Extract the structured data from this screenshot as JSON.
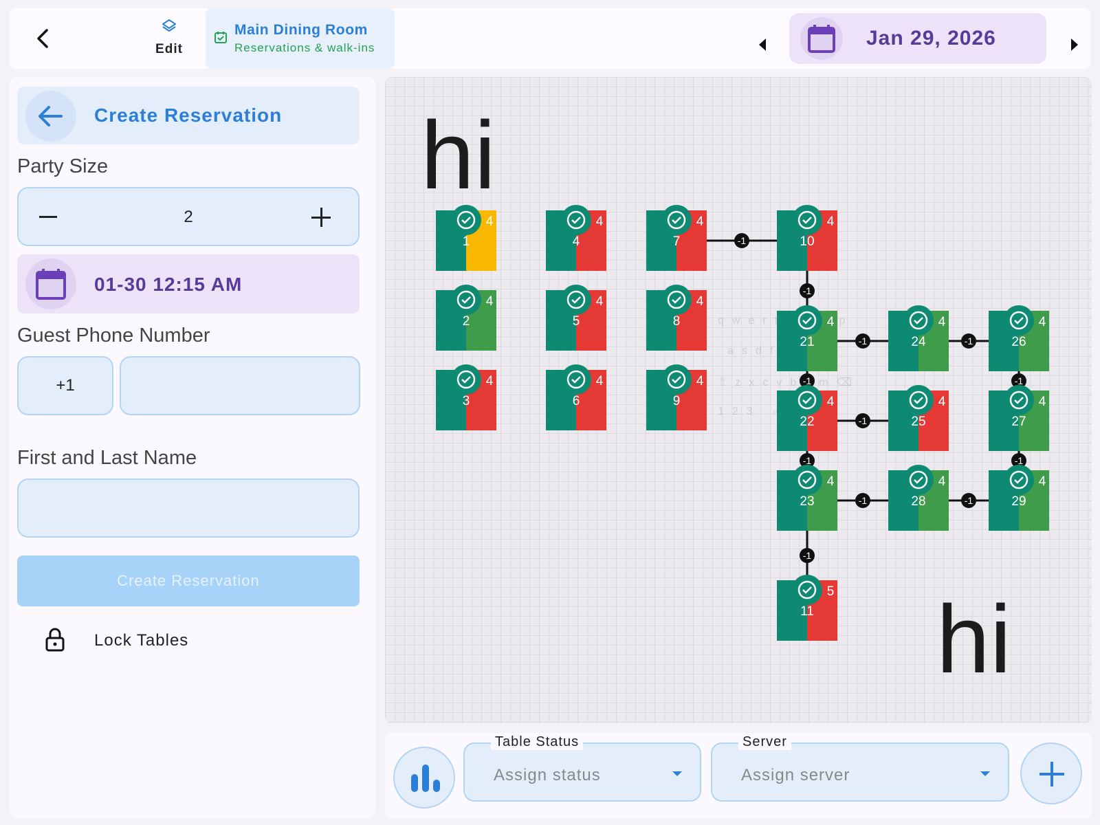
{
  "header": {
    "edit_label": "Edit",
    "room_title": "Main Dining Room",
    "room_subtitle": "Reservations & walk-ins",
    "date": "Jan 29, 2026"
  },
  "form": {
    "header_label": "Create Reservation",
    "party_size_label": "Party Size",
    "party_size": "2",
    "datetime": "01-30 12:15 AM",
    "phone_label": "Guest Phone Number",
    "country_code": "+1",
    "phone_value": "",
    "name_label": "First and Last Name",
    "name_value": "",
    "submit_label": "Create Reservation",
    "lock_label": "Lock Tables"
  },
  "floor": {
    "overlay_text_1": "hi",
    "overlay_text_2": "hi",
    "tables": [
      {
        "num": "1",
        "seats": "4",
        "right_color": "#f9b800"
      },
      {
        "num": "2",
        "seats": "4",
        "right_color": "#3e9c4a"
      },
      {
        "num": "3",
        "seats": "4",
        "right_color": "#e53935"
      },
      {
        "num": "4",
        "seats": "4",
        "right_color": "#e53935"
      },
      {
        "num": "5",
        "seats": "4",
        "right_color": "#e53935"
      },
      {
        "num": "6",
        "seats": "4",
        "right_color": "#e53935"
      },
      {
        "num": "7",
        "seats": "4",
        "right_color": "#e53935"
      },
      {
        "num": "8",
        "seats": "4",
        "right_color": "#e53935"
      },
      {
        "num": "9",
        "seats": "4",
        "right_color": "#e53935"
      },
      {
        "num": "10",
        "seats": "4",
        "right_color": "#e53935"
      },
      {
        "num": "21",
        "seats": "4",
        "right_color": "#3e9c4a"
      },
      {
        "num": "22",
        "seats": "4",
        "right_color": "#e53935"
      },
      {
        "num": "23",
        "seats": "4",
        "right_color": "#3e9c4a"
      },
      {
        "num": "24",
        "seats": "4",
        "right_color": "#3e9c4a"
      },
      {
        "num": "25",
        "seats": "4",
        "right_color": "#e53935"
      },
      {
        "num": "26",
        "seats": "4",
        "right_color": "#3e9c4a"
      },
      {
        "num": "27",
        "seats": "4",
        "right_color": "#3e9c4a"
      },
      {
        "num": "28",
        "seats": "4",
        "right_color": "#3e9c4a"
      },
      {
        "num": "29",
        "seats": "4",
        "right_color": "#3e9c4a"
      },
      {
        "num": "11",
        "seats": "5",
        "right_color": "#e53935"
      }
    ],
    "link_label": "-1",
    "table_left_color": "#0e8a72"
  },
  "bottom": {
    "status_label": "Table Status",
    "status_value": "Assign status",
    "server_label": "Server",
    "server_value": "Assign server"
  },
  "colors": {
    "accent_blue": "#2b7fd6",
    "accent_purple": "#5a3a99",
    "accent_green": "#22a352"
  }
}
